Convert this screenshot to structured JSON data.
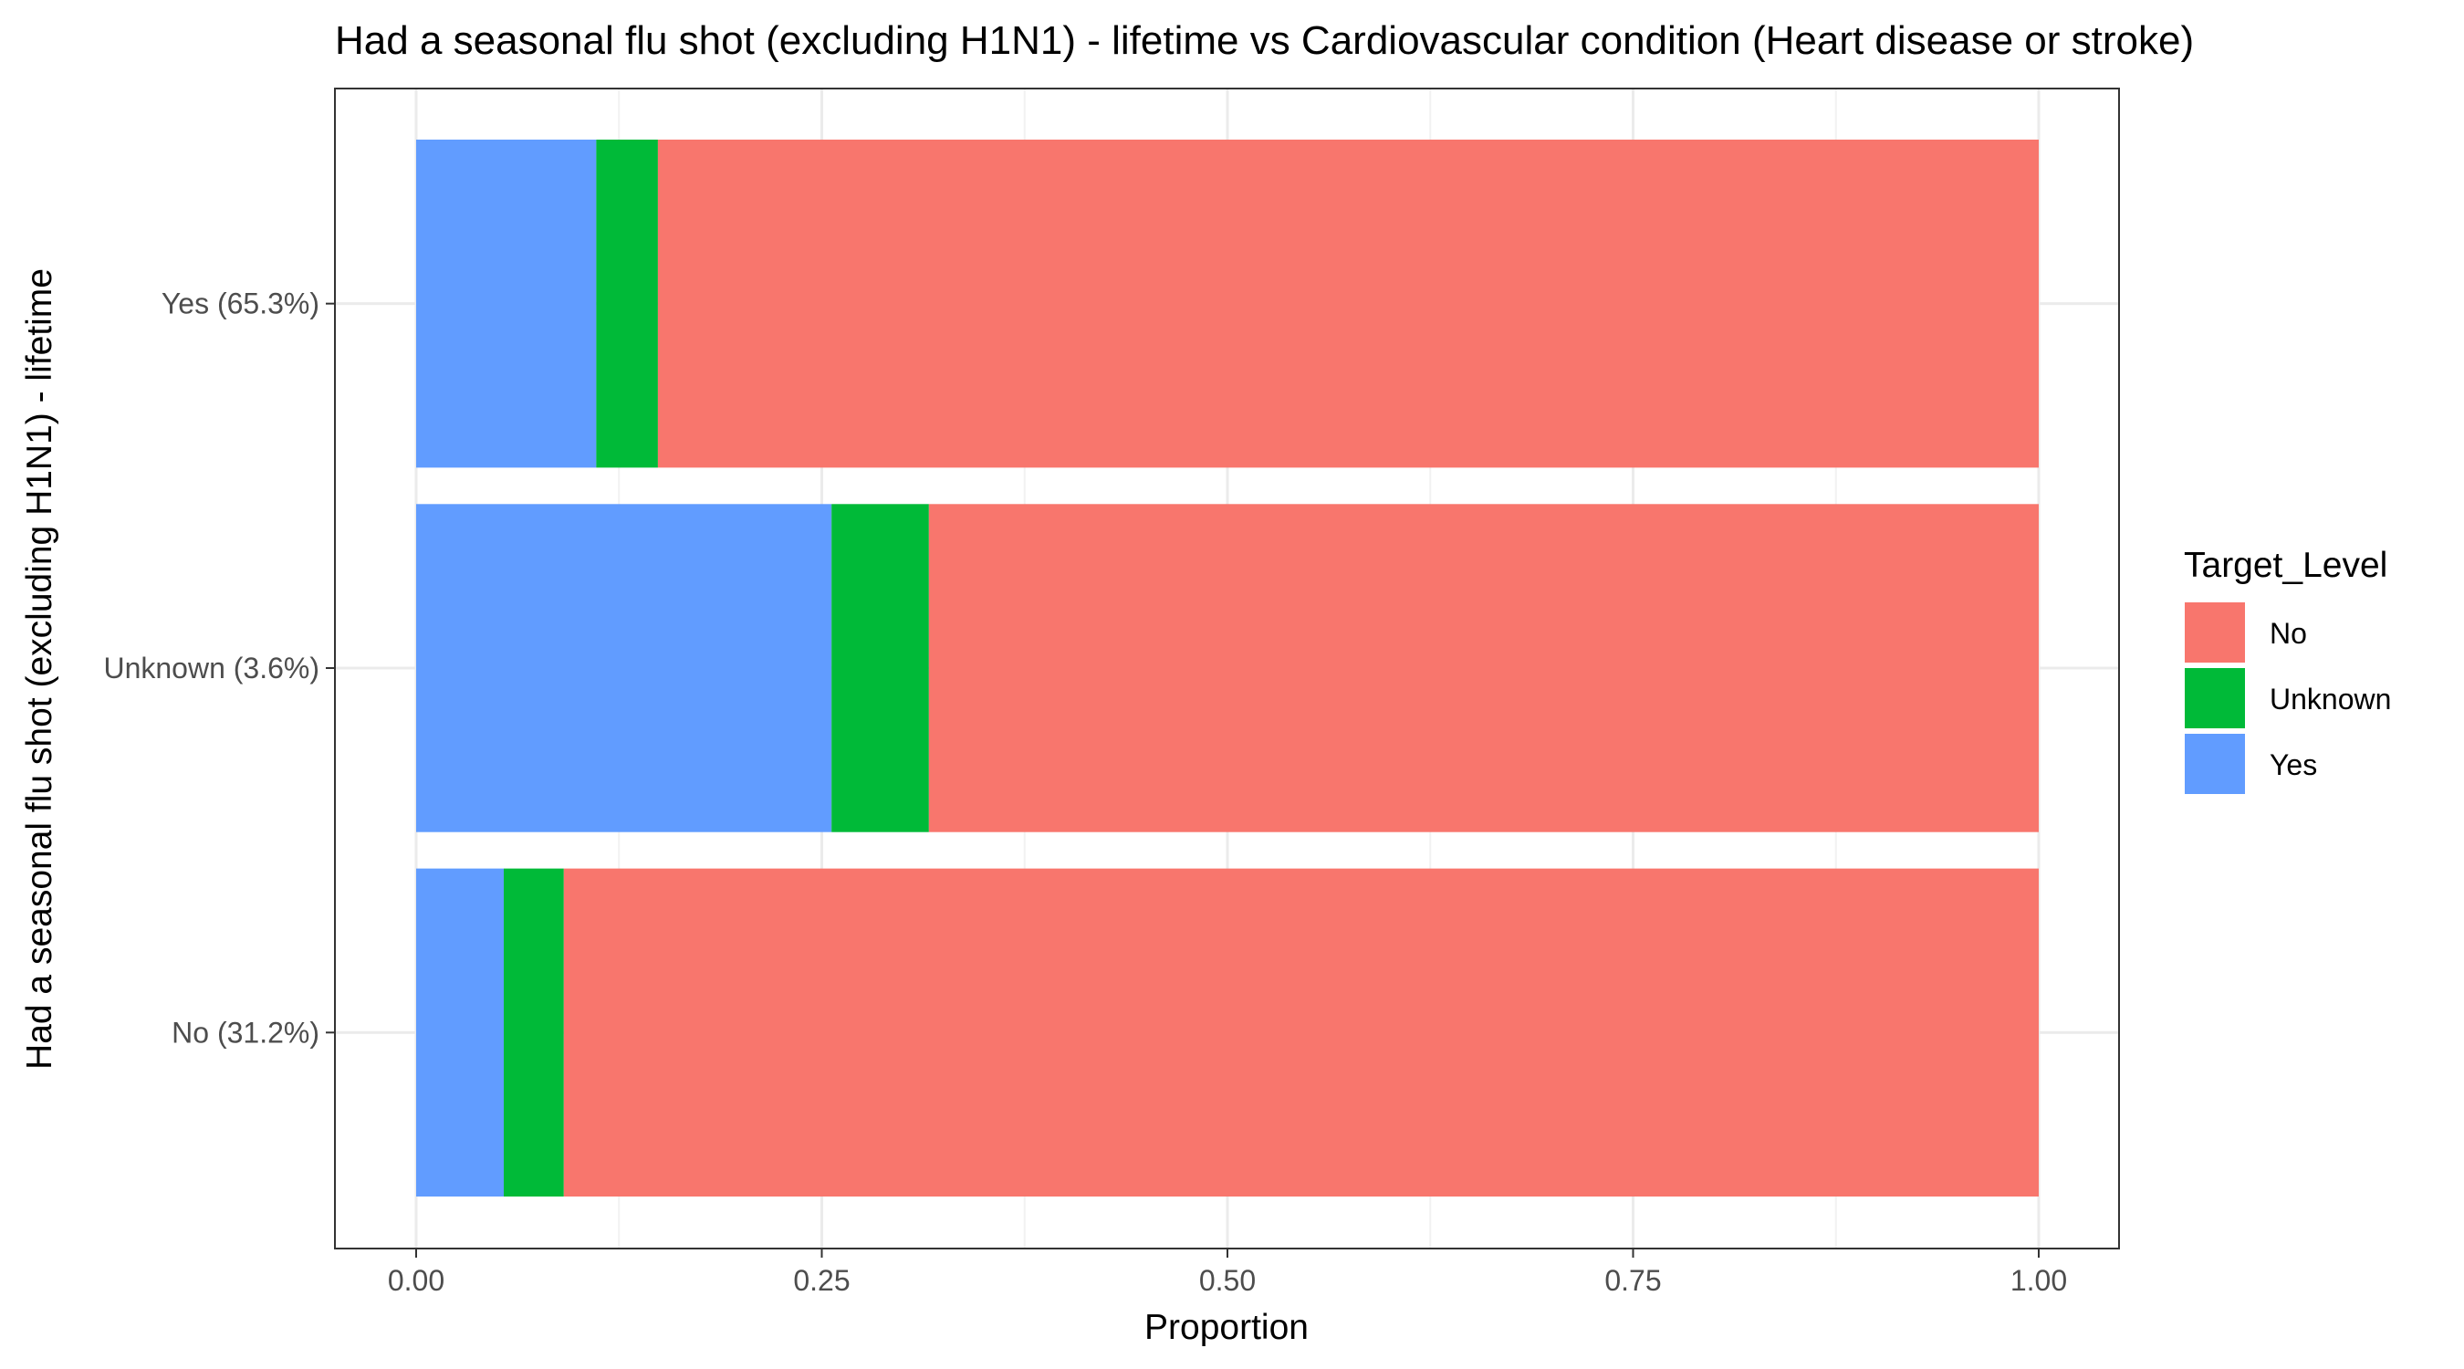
{
  "chart_data": {
    "type": "bar",
    "orientation": "horizontal",
    "stacked": true,
    "title": "Had a seasonal flu shot (excluding H1N1) - lifetime vs Cardiovascular condition (Heart disease or stroke)",
    "xlabel": "Proportion",
    "ylabel": "Had a seasonal flu shot (excluding H1N1) - lifetime",
    "xlim": [
      0,
      1
    ],
    "x_ticks": [
      "0.00",
      "0.25",
      "0.50",
      "0.75",
      "1.00"
    ],
    "x_tick_values": [
      0,
      0.25,
      0.5,
      0.75,
      1.0
    ],
    "categories": [
      "No (31.2%)",
      "Unknown (3.6%)",
      "Yes (65.3%)"
    ],
    "series": [
      {
        "name": "Yes",
        "values": [
          0.054,
          0.256,
          0.111
        ],
        "color": "#619CFF"
      },
      {
        "name": "Unknown",
        "values": [
          0.037,
          0.06,
          0.038
        ],
        "color": "#00BA38"
      },
      {
        "name": "No",
        "values": [
          0.909,
          0.684,
          0.851
        ],
        "color": "#F8766D"
      }
    ],
    "legend": {
      "title": "Target_Level",
      "position": "right",
      "entries": [
        {
          "label": "No",
          "color": "#F8766D"
        },
        {
          "label": "Unknown",
          "color": "#00BA38"
        },
        {
          "label": "Yes",
          "color": "#619CFF"
        }
      ]
    },
    "grid": true,
    "theme": "bw"
  }
}
